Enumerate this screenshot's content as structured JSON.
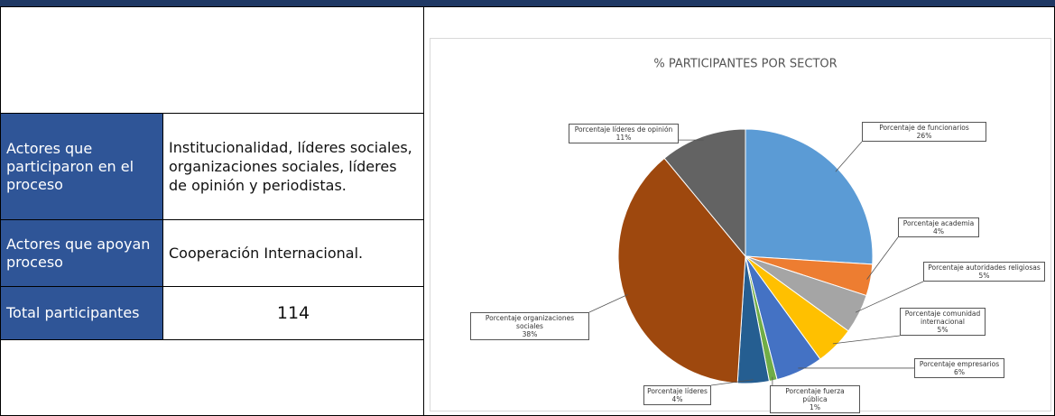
{
  "table": {
    "rows": [
      [
        "Actores que participaron en el proceso",
        "Institucionalidad, líderes sociales, organizaciones sociales, líderes de opinión y periodistas."
      ],
      [
        "Actores que apoyan proceso",
        "Cooperación Internacional."
      ],
      [
        "Total participantes",
        "114"
      ]
    ]
  },
  "chart_data": {
    "type": "pie",
    "title": "% PARTICIPANTES POR SECTOR",
    "categories": [
      "Porcentaje de funcionarios",
      "Porcentaje academia",
      "Porcentaje autoridades religiosas",
      "Porcentaje comunidad internacional",
      "Porcentaje empresarios",
      "Porcentaje fuerza pública",
      "Porcentaje líderes",
      "Porcentaje organizaciones sociales",
      "Porcentaje líderes de opinión"
    ],
    "values": [
      26,
      4,
      5,
      5,
      6,
      1,
      4,
      38,
      11
    ],
    "value_labels": [
      "26%",
      "4%",
      "5%",
      "5%",
      "6%",
      "1%",
      "4%",
      "38%",
      "11%"
    ],
    "colors": [
      "#5b9bd5",
      "#ed7d31",
      "#a5a5a5",
      "#ffc000",
      "#4472c4",
      "#70ad47",
      "#255e91",
      "#9e480e",
      "#636363"
    ]
  }
}
